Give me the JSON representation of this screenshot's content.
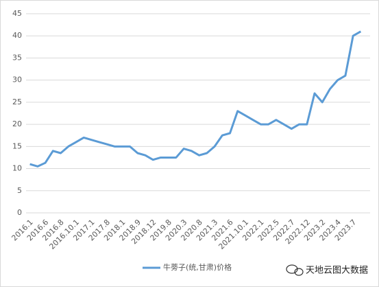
{
  "chart_data": {
    "type": "line",
    "categories": [
      "2016.1",
      null,
      "2016.6",
      null,
      "2016.8",
      null,
      "2016.10.1",
      null,
      "2017.1",
      null,
      "2017.8",
      null,
      "2018.1",
      null,
      "2018.9",
      null,
      "2018.12",
      null,
      "2019.8",
      null,
      "2020.3",
      null,
      "2020.8",
      null,
      "2021.3",
      null,
      "2021.6",
      null,
      "2021.10.1",
      null,
      "2022.1",
      null,
      "2022.5",
      null,
      "2022.7",
      null,
      "2022.12",
      null,
      "2023.2",
      null,
      "2023.4",
      null,
      "2023.7",
      null
    ],
    "series": [
      {
        "name": "牛蒡子(统,甘肃)价格",
        "color": "#5b9bd5",
        "values": [
          11,
          10.5,
          11.3,
          14,
          13.5,
          15,
          16,
          17,
          16.5,
          16,
          15.5,
          15,
          15,
          15,
          13.5,
          13,
          12,
          12.5,
          12.5,
          12.5,
          14.5,
          14,
          13,
          13.5,
          15,
          17.5,
          18,
          23,
          22,
          21,
          20,
          20,
          21,
          20,
          19,
          20,
          20,
          27,
          25,
          28,
          30,
          31,
          40,
          41
        ]
      }
    ],
    "ylim": [
      0,
      45
    ],
    "yticks": [
      0,
      5,
      10,
      15,
      20,
      25,
      30,
      35,
      40,
      45
    ],
    "grid": true,
    "legend": "bottom",
    "watermark": "天地云图大数据"
  }
}
